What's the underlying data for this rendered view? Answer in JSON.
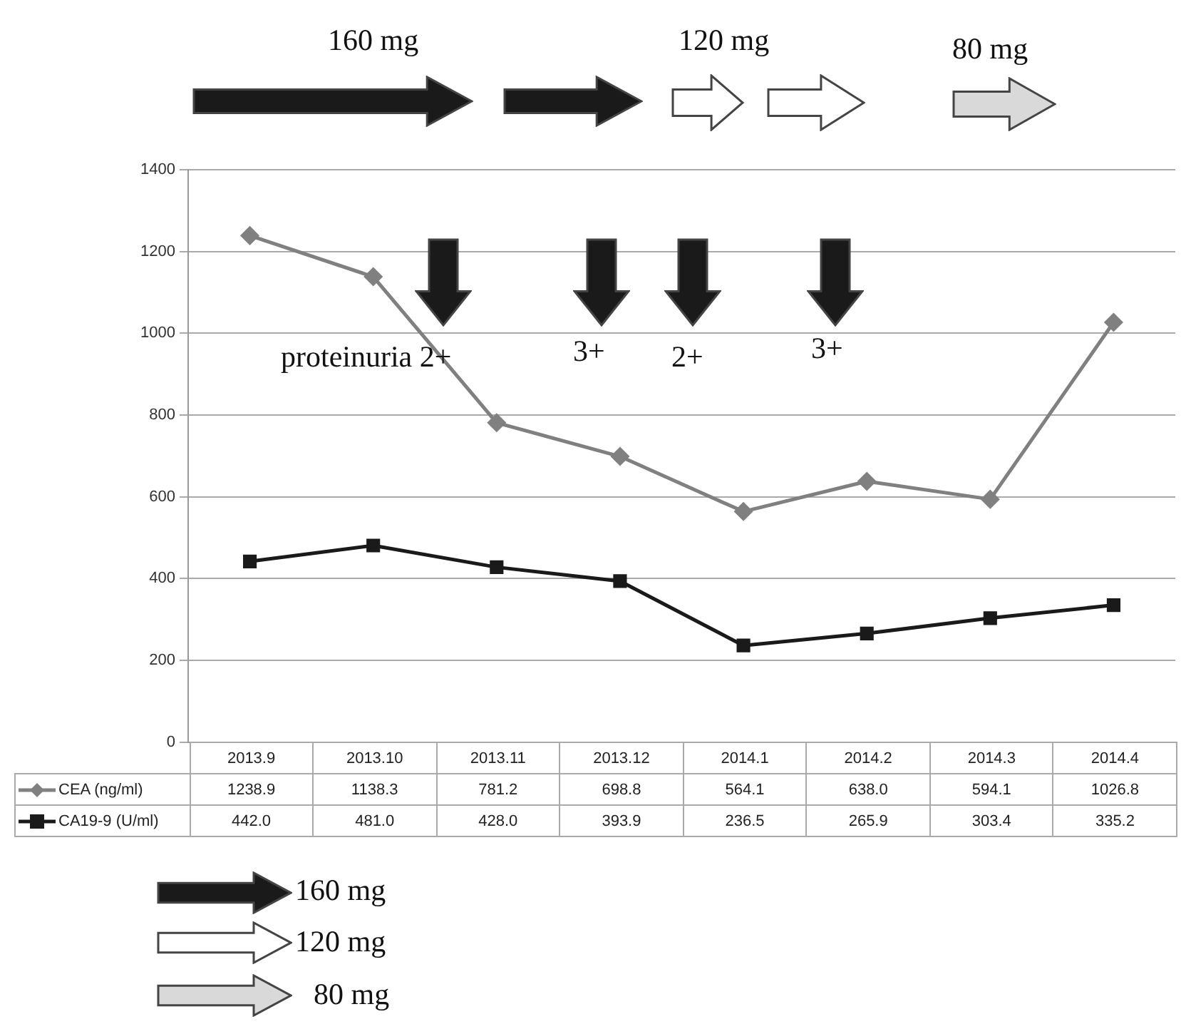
{
  "chart_data": {
    "type": "line",
    "categories": [
      "2013.9",
      "2013.10",
      "2013.11",
      "2013.12",
      "2014.1",
      "2014.2",
      "2014.3",
      "2014.4"
    ],
    "series": [
      {
        "name": "CEA (ng/ml)",
        "color": "#808080",
        "marker": "diamond",
        "values": [
          1238.9,
          1138.3,
          781.2,
          698.8,
          564.1,
          638.0,
          594.1,
          1026.8
        ],
        "value_labels": [
          "1238.9",
          "1138.3",
          "781.2",
          "698.8",
          "564.1",
          "638.0",
          "594.1",
          "1026.8"
        ]
      },
      {
        "name": "CA19-9 (U/ml)",
        "color": "#1a1a1a",
        "marker": "square",
        "values": [
          442.0,
          481.0,
          428.0,
          393.9,
          236.5,
          265.9,
          303.4,
          335.2
        ],
        "value_labels": [
          "442.0",
          "481.0",
          "428.0",
          "393.9",
          "236.5",
          "265.9",
          "303.4",
          "335.2"
        ]
      }
    ],
    "ylim": [
      0,
      1400
    ],
    "yticks": [
      0,
      200,
      400,
      600,
      800,
      1000,
      1200,
      1400
    ],
    "grid": "y",
    "legend": "bottom",
    "annotations": [
      "160 mg",
      "120 mg",
      "80 mg",
      "proteinuria 2+",
      "3+",
      "2+",
      "3+",
      "160 mg",
      "120 mg",
      "80 mg"
    ]
  }
}
